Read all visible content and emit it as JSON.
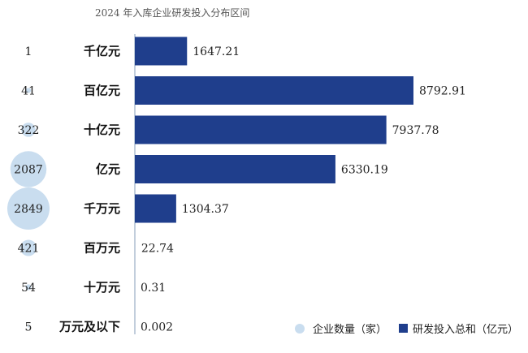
{
  "chart_data": {
    "type": "bar",
    "title": "2024 年入库企业研发投入分布区间",
    "categories": [
      "千亿元",
      "百亿元",
      "十亿元",
      "亿元",
      "千万元",
      "百万元",
      "十万元",
      "万元及以下"
    ],
    "series": [
      {
        "name": "企业数量（家）",
        "values": [
          1,
          41,
          322,
          2087,
          2849,
          421,
          54,
          5
        ]
      },
      {
        "name": "研发投入总和（亿元）",
        "values": [
          1647.21,
          8792.91,
          7937.78,
          6330.19,
          1304.37,
          22.74,
          0.31,
          0.002
        ]
      }
    ],
    "value_labels": [
      "1647.21",
      "8792.91",
      "7937.78",
      "6330.19",
      "1304.37",
      "22.74",
      "0.31",
      "0.002"
    ],
    "x_range": [
      0,
      8792.91
    ],
    "grid": false,
    "legend_position": "bottom-right"
  },
  "colors": {
    "bubble": "#c9ddef",
    "bar": "#1f3e8c",
    "axis": "#9aaec6"
  }
}
